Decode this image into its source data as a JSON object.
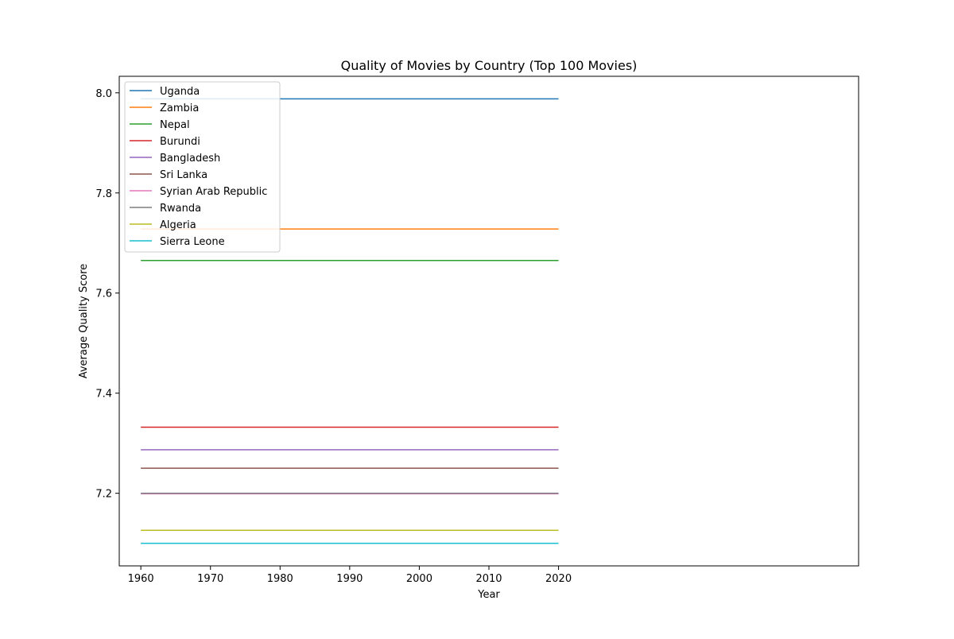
{
  "chart_data": {
    "type": "line",
    "title": "Quality of Movies by Country (Top 100 Movies)",
    "xlabel": "Year",
    "ylabel": "Average Quality Score",
    "xlim": [
      1956.9,
      2063.1
    ],
    "ylim": [
      7.055,
      8.033
    ],
    "xticks": [
      1960,
      1970,
      1980,
      1990,
      2000,
      2010,
      2020
    ],
    "yticks": [
      7.2,
      7.4,
      7.6,
      7.8,
      8.0
    ],
    "xtick_labels": [
      "1960",
      "1970",
      "1980",
      "1990",
      "2000",
      "2010",
      "2020"
    ],
    "ytick_labels": [
      "7.2",
      "7.4",
      "7.6",
      "7.8",
      "8.0"
    ],
    "x": [
      1960,
      2020
    ],
    "grid": false,
    "legend_position": "top-left",
    "series": [
      {
        "name": "Uganda",
        "color": "#1f77b4",
        "values": [
          7.988,
          7.988
        ]
      },
      {
        "name": "Zambia",
        "color": "#ff7f0e",
        "values": [
          7.728,
          7.728
        ]
      },
      {
        "name": "Nepal",
        "color": "#2ca02c",
        "values": [
          7.665,
          7.665
        ]
      },
      {
        "name": "Burundi",
        "color": "#d62728",
        "values": [
          7.332,
          7.332
        ]
      },
      {
        "name": "Bangladesh",
        "color": "#9467bd",
        "values": [
          7.287,
          7.287
        ]
      },
      {
        "name": "Sri Lanka",
        "color": "#8c564b",
        "values": [
          7.25,
          7.25
        ]
      },
      {
        "name": "Syrian Arab Republic",
        "color": "#e377c2",
        "values": [
          7.199,
          7.199
        ]
      },
      {
        "name": "Rwanda",
        "color": "#7f7f7f",
        "values": [
          7.2,
          7.2
        ]
      },
      {
        "name": "Algeria",
        "color": "#bcbd22",
        "values": [
          7.126,
          7.126
        ]
      },
      {
        "name": "Sierra Leone",
        "color": "#17becf",
        "values": [
          7.1,
          7.1
        ]
      }
    ]
  }
}
